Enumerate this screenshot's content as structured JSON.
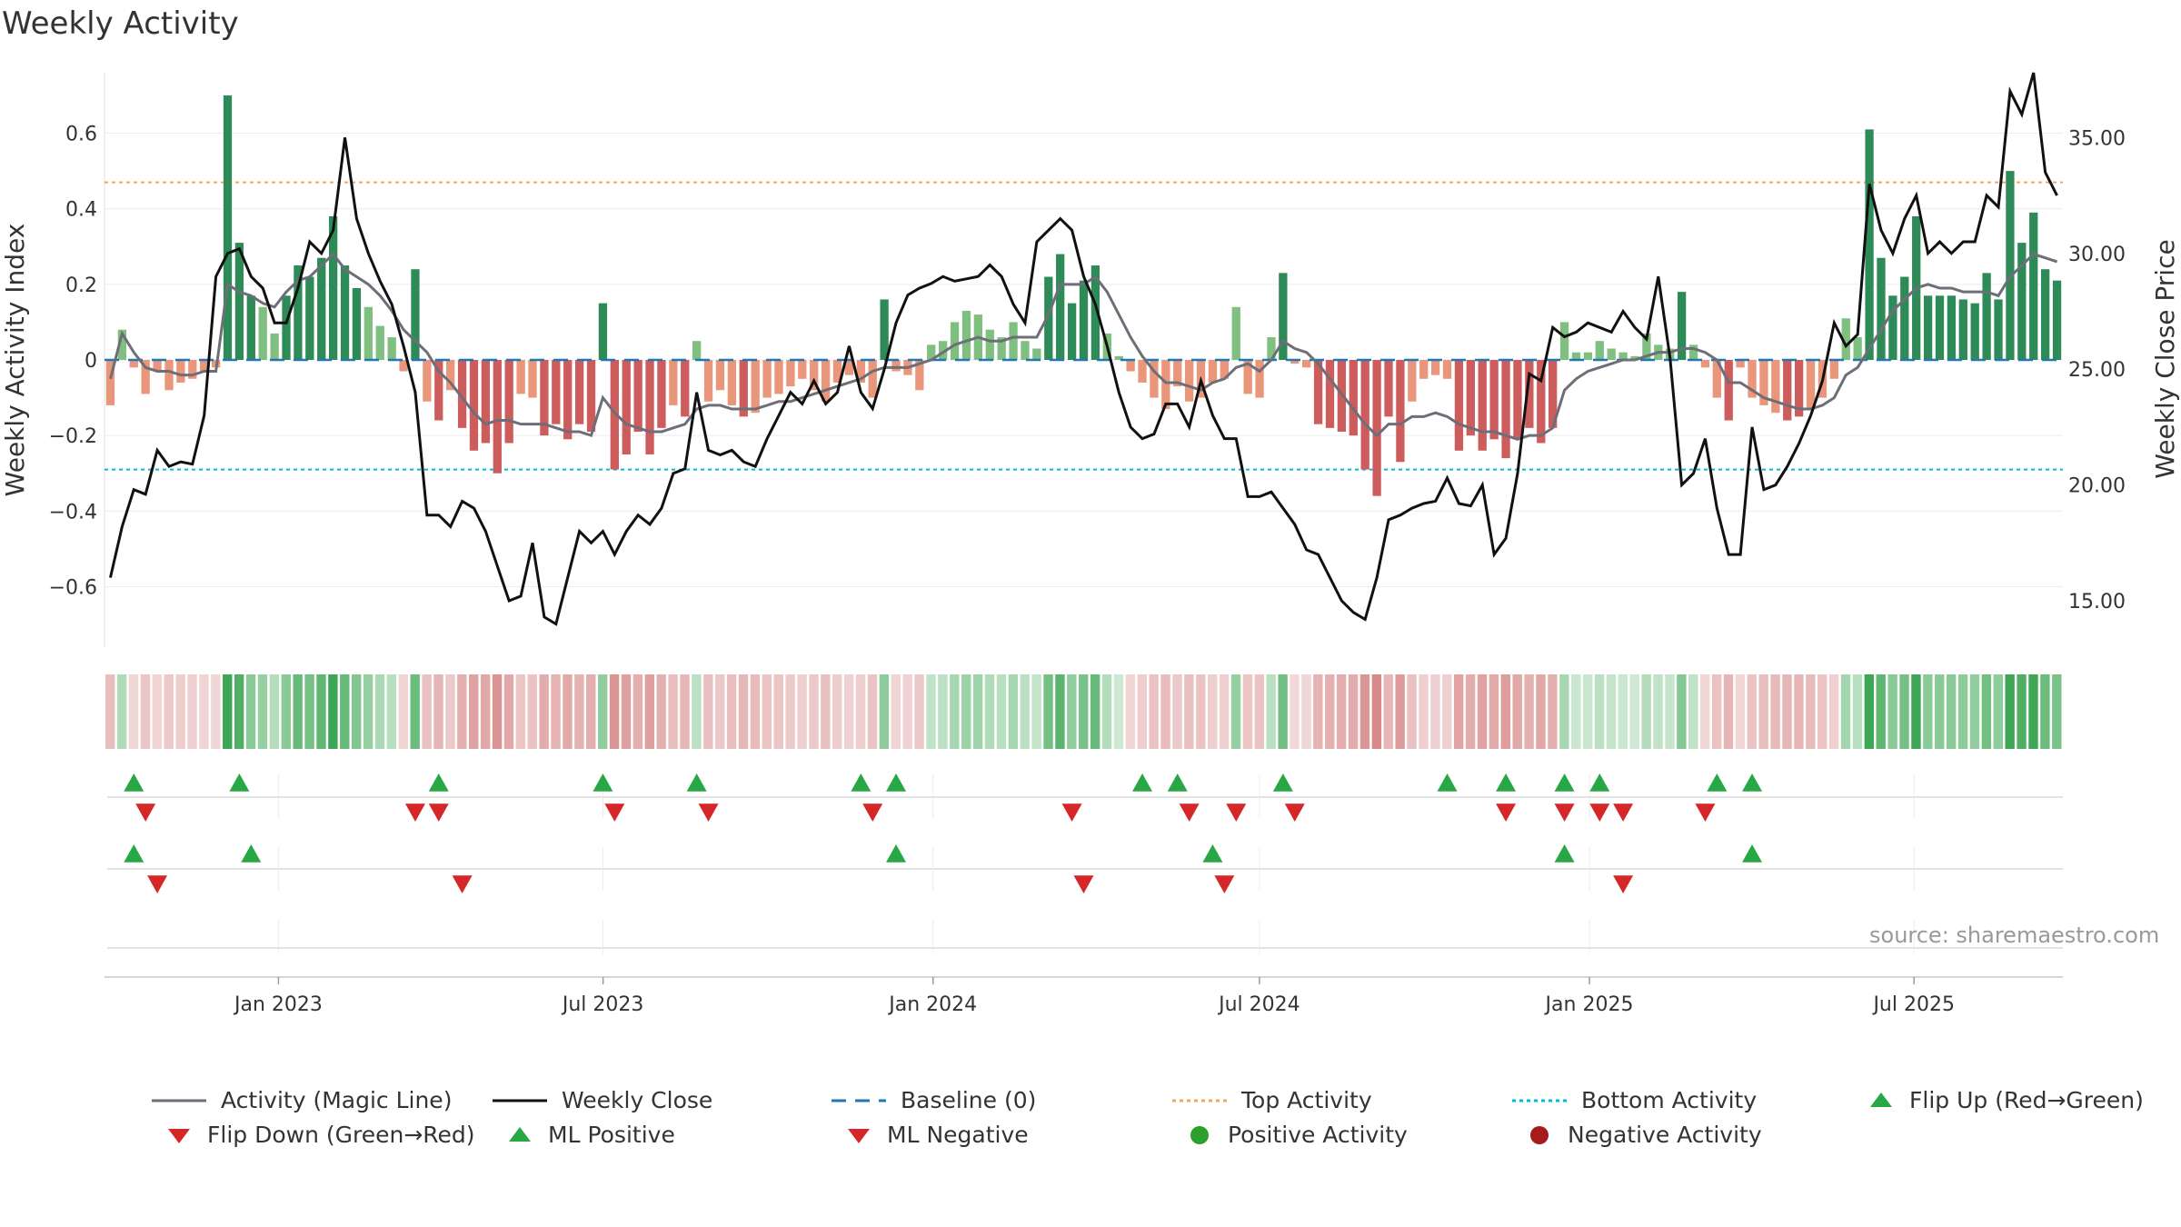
{
  "title": "Weekly Activity",
  "source": "source: sharemaestro.com",
  "colors": {
    "pos_dark": "#2e8b57",
    "pos_light": "#7fbf7f",
    "neg_dark": "#cd5c5c",
    "neg_light": "#e9967a",
    "magic": "#6e6e78",
    "close": "#111111",
    "baseline": "#1f77b4",
    "top": "#f4a460",
    "bottom": "#00bcd4",
    "up": "#28a745",
    "down": "#d62728",
    "posdot": "#2ca02c",
    "negdot": "#a61c1c"
  },
  "chart_data": {
    "type": "bar+line",
    "title": "Weekly Activity",
    "y_left": {
      "label": "Weekly Activity Index",
      "range": [
        -0.76,
        0.76
      ],
      "ticks": [
        -0.6,
        -0.4,
        -0.2,
        0,
        0.2,
        0.4,
        0.6
      ],
      "tick_labels": [
        "−0.6",
        "−0.4",
        "−0.2",
        "0",
        "0.2",
        "0.4",
        "0.6"
      ]
    },
    "y_right": {
      "label": "Weekly Close Price",
      "range": [
        13.0,
        37.8
      ],
      "ticks": [
        15,
        20,
        25,
        30,
        35
      ],
      "tick_labels": [
        "15.00",
        "20.00",
        "25.00",
        "30.00",
        "35.00"
      ]
    },
    "x": {
      "start": "2022-09-26",
      "end": "2025-09-22",
      "ticks": [
        "Jan 2023",
        "Jul 2023",
        "Jan 2024",
        "Jul 2024",
        "Jan 2025",
        "Jul 2025"
      ]
    },
    "top_activity": 0.47,
    "bottom_activity": -0.29,
    "baseline": 0,
    "activity": [
      -0.12,
      0.08,
      -0.02,
      -0.09,
      -0.03,
      -0.08,
      -0.06,
      -0.05,
      -0.03,
      -0.02,
      0.7,
      0.31,
      0.17,
      0.14,
      0.07,
      0.17,
      0.25,
      0.22,
      0.27,
      0.38,
      0.25,
      0.19,
      0.14,
      0.09,
      0.06,
      -0.03,
      0.24,
      -0.11,
      -0.16,
      -0.08,
      -0.18,
      -0.24,
      -0.22,
      -0.3,
      -0.22,
      -0.09,
      -0.1,
      -0.2,
      -0.17,
      -0.21,
      -0.17,
      -0.19,
      0.15,
      -0.29,
      -0.25,
      -0.19,
      -0.25,
      -0.18,
      -0.12,
      -0.15,
      0.05,
      -0.11,
      -0.08,
      -0.12,
      -0.15,
      -0.14,
      -0.1,
      -0.09,
      -0.07,
      -0.05,
      -0.08,
      -0.11,
      -0.06,
      -0.04,
      -0.06,
      -0.1,
      0.16,
      -0.03,
      -0.04,
      -0.08,
      0.04,
      0.05,
      0.1,
      0.13,
      0.12,
      0.08,
      0.06,
      0.1,
      0.05,
      0.03,
      0.22,
      0.28,
      0.15,
      0.21,
      0.25,
      0.07,
      0.01,
      -0.03,
      -0.06,
      -0.1,
      -0.13,
      -0.07,
      -0.11,
      -0.1,
      -0.06,
      -0.05,
      0.14,
      -0.09,
      -0.1,
      0.06,
      0.23,
      -0.01,
      -0.02,
      -0.17,
      -0.18,
      -0.19,
      -0.2,
      -0.29,
      -0.36,
      -0.15,
      -0.27,
      -0.11,
      -0.05,
      -0.04,
      -0.05,
      -0.24,
      -0.2,
      -0.24,
      -0.21,
      -0.26,
      -0.21,
      -0.18,
      -0.22,
      -0.18,
      0.1,
      0.02,
      0.02,
      0.05,
      0.03,
      0.02,
      0.01,
      0.07,
      0.04,
      0.03,
      0.18,
      0.04,
      -0.02,
      -0.1,
      -0.16,
      -0.02,
      -0.1,
      -0.12,
      -0.14,
      -0.16,
      -0.15,
      -0.13,
      -0.1,
      -0.05,
      0.11,
      0.06,
      0.61,
      0.27,
      0.17,
      0.22,
      0.38,
      0.17,
      0.17,
      0.17,
      0.16,
      0.15,
      0.23,
      0.16,
      0.5,
      0.31,
      0.39,
      0.24,
      0.21
    ],
    "magic_line": [
      -0.05,
      0.07,
      0.02,
      -0.02,
      -0.03,
      -0.03,
      -0.04,
      -0.04,
      -0.03,
      -0.03,
      0.2,
      0.18,
      0.17,
      0.15,
      0.14,
      0.18,
      0.21,
      0.22,
      0.25,
      0.28,
      0.24,
      0.22,
      0.2,
      0.17,
      0.13,
      0.08,
      0.05,
      0.02,
      -0.03,
      -0.06,
      -0.1,
      -0.14,
      -0.17,
      -0.16,
      -0.16,
      -0.17,
      -0.17,
      -0.17,
      -0.18,
      -0.19,
      -0.19,
      -0.2,
      -0.1,
      -0.14,
      -0.17,
      -0.18,
      -0.19,
      -0.19,
      -0.18,
      -0.17,
      -0.13,
      -0.12,
      -0.12,
      -0.13,
      -0.13,
      -0.13,
      -0.12,
      -0.11,
      -0.11,
      -0.1,
      -0.09,
      -0.08,
      -0.07,
      -0.06,
      -0.05,
      -0.03,
      -0.02,
      -0.02,
      -0.02,
      -0.01,
      0.0,
      0.02,
      0.04,
      0.05,
      0.06,
      0.05,
      0.05,
      0.06,
      0.06,
      0.06,
      0.12,
      0.2,
      0.2,
      0.2,
      0.22,
      0.18,
      0.12,
      0.06,
      0.01,
      -0.03,
      -0.06,
      -0.06,
      -0.07,
      -0.08,
      -0.06,
      -0.05,
      -0.02,
      -0.01,
      -0.03,
      0.0,
      0.05,
      0.03,
      0.02,
      -0.01,
      -0.05,
      -0.09,
      -0.13,
      -0.17,
      -0.2,
      -0.17,
      -0.17,
      -0.15,
      -0.15,
      -0.14,
      -0.15,
      -0.17,
      -0.18,
      -0.19,
      -0.19,
      -0.2,
      -0.21,
      -0.2,
      -0.2,
      -0.18,
      -0.08,
      -0.05,
      -0.03,
      -0.02,
      -0.01,
      0.0,
      0.0,
      0.01,
      0.02,
      0.02,
      0.03,
      0.03,
      0.02,
      0.0,
      -0.06,
      -0.06,
      -0.08,
      -0.1,
      -0.11,
      -0.12,
      -0.13,
      -0.13,
      -0.12,
      -0.1,
      -0.04,
      -0.02,
      0.03,
      0.08,
      0.13,
      0.16,
      0.19,
      0.2,
      0.19,
      0.19,
      0.18,
      0.18,
      0.18,
      0.17,
      0.22,
      0.25,
      0.28,
      0.27,
      0.26
    ],
    "weekly_close": [
      16.0,
      18.2,
      19.8,
      19.6,
      21.5,
      20.8,
      21.0,
      20.9,
      23.0,
      29.0,
      30.0,
      30.2,
      29.0,
      28.5,
      27.0,
      27.0,
      28.5,
      30.5,
      30.0,
      31.0,
      35.0,
      31.5,
      30.0,
      28.8,
      27.8,
      26.0,
      24.0,
      18.7,
      18.7,
      18.2,
      19.3,
      19.0,
      18.0,
      16.5,
      15.0,
      15.2,
      17.5,
      14.3,
      14.0,
      16.0,
      18.0,
      17.5,
      18.0,
      17.0,
      18.0,
      18.7,
      18.3,
      19.0,
      20.5,
      20.7,
      24.0,
      21.5,
      21.3,
      21.5,
      21.0,
      20.8,
      22.0,
      23.0,
      24.0,
      23.5,
      24.5,
      23.5,
      24.0,
      26.0,
      24.0,
      23.3,
      25.0,
      27.0,
      28.2,
      28.5,
      28.7,
      29.0,
      28.8,
      28.9,
      29.0,
      29.5,
      29.0,
      27.8,
      27.0,
      30.5,
      31.0,
      31.5,
      31.0,
      29.0,
      27.8,
      26.0,
      24.0,
      22.5,
      22.0,
      22.2,
      23.5,
      23.5,
      22.5,
      24.5,
      23.0,
      22.0,
      22.0,
      19.5,
      19.5,
      19.7,
      19.0,
      18.3,
      17.2,
      17.0,
      16.0,
      15.0,
      14.5,
      14.2,
      16.0,
      18.5,
      18.7,
      19.0,
      19.2,
      19.3,
      20.3,
      19.2,
      19.1,
      20.0,
      17.0,
      17.7,
      20.5,
      24.8,
      24.5,
      26.8,
      26.4,
      26.6,
      27.0,
      26.8,
      26.6,
      27.5,
      26.8,
      26.3,
      29.0,
      25.5,
      20.0,
      20.5,
      22.0,
      19.0,
      17.0,
      17.0,
      22.5,
      19.8,
      20.0,
      20.8,
      21.8,
      23.0,
      24.5,
      27.0,
      26.0,
      26.5,
      33.0,
      31.0,
      30.0,
      31.5,
      32.5,
      30.0,
      30.5,
      30.0,
      30.5,
      30.5,
      32.5,
      32.0,
      37.0,
      36.0,
      37.8,
      33.5,
      32.5
    ],
    "flip_up": [
      2,
      11,
      28,
      42,
      50,
      64,
      67,
      88,
      91,
      100,
      114,
      119,
      124,
      127,
      137,
      140
    ],
    "flip_down": [
      3,
      26,
      28,
      43,
      51,
      65,
      82,
      92,
      96,
      101,
      119,
      124,
      127,
      129,
      136
    ],
    "ml_positive": [
      2,
      12,
      67,
      94,
      124,
      140
    ],
    "ml_negative": [
      4,
      30,
      83,
      95,
      129
    ]
  },
  "legend": [
    {
      "label": "Activity (Magic Line)",
      "marker": "line",
      "color": "#6e6e78"
    },
    {
      "label": "Weekly Close",
      "marker": "line",
      "color": "#111111"
    },
    {
      "label": "Baseline (0)",
      "marker": "dash",
      "color": "#1f77b4"
    },
    {
      "label": "Top Activity",
      "marker": "dot-line",
      "color": "#f4a460"
    },
    {
      "label": "Bottom Activity",
      "marker": "dot-line",
      "color": "#00bcd4"
    },
    {
      "label": "Flip Up (Red→Green)",
      "marker": "tri-up",
      "color": "#28a745"
    },
    {
      "label": "Flip Down (Green→Red)",
      "marker": "tri-down",
      "color": "#d62728"
    },
    {
      "label": "ML Positive",
      "marker": "tri-up",
      "color": "#28a745"
    },
    {
      "label": "ML Negative",
      "marker": "tri-down",
      "color": "#d62728"
    },
    {
      "label": "Positive Activity",
      "marker": "dot",
      "color": "#2ca02c"
    },
    {
      "label": "Negative Activity",
      "marker": "dot",
      "color": "#a61c1c"
    }
  ]
}
